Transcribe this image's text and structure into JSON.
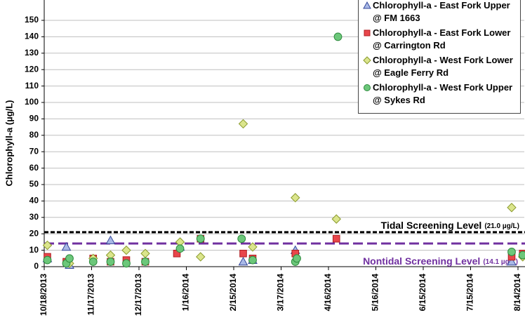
{
  "chart_data": {
    "type": "scatter",
    "y_label": "Chlorophyll-a (µg/L)",
    "xlim": [
      "10/18/2013",
      "8/18/2014"
    ],
    "xticks": [
      "10/18/2013",
      "11/17/2013",
      "12/17/2013",
      "1/16/2014",
      "2/15/2014",
      "3/17/2014",
      "4/16/2014",
      "5/16/2014",
      "6/15/2014",
      "7/15/2014",
      "8/14/2014"
    ],
    "ylim": [
      0,
      150
    ],
    "yticks": [
      0,
      10,
      20,
      30,
      40,
      50,
      60,
      70,
      80,
      90,
      100,
      110,
      120,
      130,
      140,
      150
    ],
    "grid": true,
    "legend": "top-right",
    "series": [
      {
        "name": "Chlorophyll-a - East Fork Upper @ FM 1663",
        "marker": "triangle",
        "color": "#a9b9e6",
        "stroke": "#35489a",
        "x": [
          "10/20/2013",
          "11/1/2013",
          "11/3/2013",
          "11/29/2013",
          "1/12/2014",
          "2/21/2014",
          "2/27/2014",
          "3/26/2014",
          "8/10/2014"
        ],
        "values": [
          5,
          12,
          1,
          16,
          12,
          3,
          4,
          10,
          3
        ]
      },
      {
        "name": "Chlorophyll-a - East Fork Lower @ Carrington Rd",
        "marker": "square",
        "color": "#e8464b",
        "stroke": "#b01e22",
        "x": [
          "10/20/2013",
          "11/1/2013",
          "11/18/2013",
          "11/29/2013",
          "12/9/2013",
          "12/21/2013",
          "1/10/2014",
          "1/25/2014",
          "2/21/2014",
          "2/27/2014",
          "3/26/2014",
          "4/21/2014",
          "8/10/2014",
          "8/17/2014"
        ],
        "values": [
          6,
          3,
          5,
          3,
          4,
          3,
          8,
          17,
          8,
          5,
          8,
          17,
          6,
          8
        ]
      },
      {
        "name": "Chlorophyll-a - West Fork Lower @ Eagle Ferry Rd",
        "marker": "diamond",
        "color": "#dbe58c",
        "stroke": "#8a9a2c",
        "x": [
          "10/20/2013",
          "11/3/2013",
          "11/18/2013",
          "11/29/2013",
          "12/9/2013",
          "12/21/2013",
          "1/12/2014",
          "1/25/2014",
          "2/21/2014",
          "2/27/2014",
          "3/26/2014",
          "4/21/2014",
          "8/10/2014",
          "8/17/2014"
        ],
        "values": [
          13,
          2,
          5,
          7,
          10,
          8,
          15,
          6,
          87,
          12,
          42,
          29,
          36,
          6
        ]
      },
      {
        "name": "Chlorophyll-a - West Fork Upper @ Sykes Rd",
        "marker": "circle",
        "color": "#6cc77a",
        "stroke": "#2d8a3d",
        "x": [
          "10/20/2013",
          "11/1/2013",
          "11/3/2013",
          "11/18/2013",
          "11/29/2013",
          "12/9/2013",
          "12/21/2013",
          "1/12/2014",
          "1/25/2014",
          "2/20/2014",
          "2/27/2014",
          "3/26/2014",
          "3/27/2014",
          "4/22/2014",
          "8/10/2014",
          "8/17/2014"
        ],
        "values": [
          4,
          2,
          5,
          3,
          3,
          2,
          3,
          11,
          17,
          17,
          4,
          3,
          5,
          140,
          9,
          7
        ]
      }
    ],
    "reference_lines": [
      {
        "label": "Tidal Screening Level",
        "value_label": "(21.0 µg/L)",
        "value": 21.0,
        "color": "#000000"
      },
      {
        "label": "Nontidal Screening Level",
        "value_label": "(14.1 µg/L)",
        "value": 14.1,
        "color": "#7030a0"
      }
    ]
  }
}
